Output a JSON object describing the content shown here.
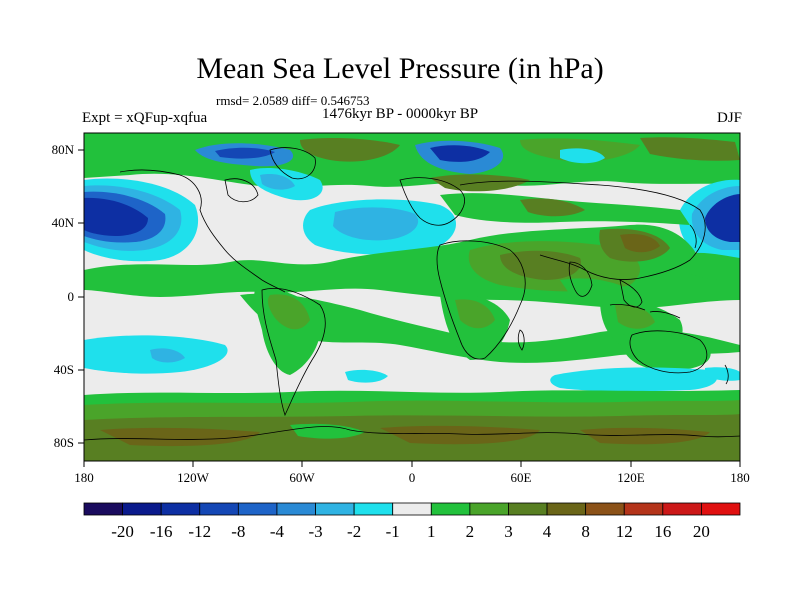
{
  "title": "Mean Sea Level Pressure (in hPa)",
  "stats": "rmsd= 2.0589 diff= 0.546753",
  "experiment": "Expt = xQFup-xqfua",
  "period": "1476kyr BP - 0000kyr BP",
  "season": "DJF",
  "lat_ticks": [
    "80N",
    "40N",
    "0",
    "40S",
    "80S"
  ],
  "lon_ticks": [
    "180",
    "120W",
    "60W",
    "0",
    "60E",
    "120E",
    "180"
  ],
  "colorbar": {
    "labels": [
      "-20",
      "-16",
      "-12",
      "-8",
      "-4",
      "-3",
      "-2",
      "-1",
      "1",
      "2",
      "3",
      "4",
      "8",
      "12",
      "16",
      "20"
    ],
    "colors": [
      "#1a0b5e",
      "#0a1a8c",
      "#0d2fa3",
      "#1447b5",
      "#1e64c8",
      "#2a8ad5",
      "#2fb3e3",
      "#1fe0ec",
      "#ececec",
      "#22c13c",
      "#4aa42a",
      "#587f22",
      "#6a6518",
      "#8b5218",
      "#b4341a",
      "#cc1818",
      "#e01010"
    ]
  },
  "map_colors": {
    "neutral": "#ececec",
    "pos1": "#22c13c",
    "pos2": "#4aa42a",
    "pos3": "#587f22",
    "pos4": "#6a6518",
    "neg1": "#1fe0ec",
    "neg2": "#2fb3e3",
    "neg3": "#2a8ad5",
    "neg4": "#1e64c8",
    "neg5": "#1447b5",
    "neg6": "#0d2fa3"
  }
}
